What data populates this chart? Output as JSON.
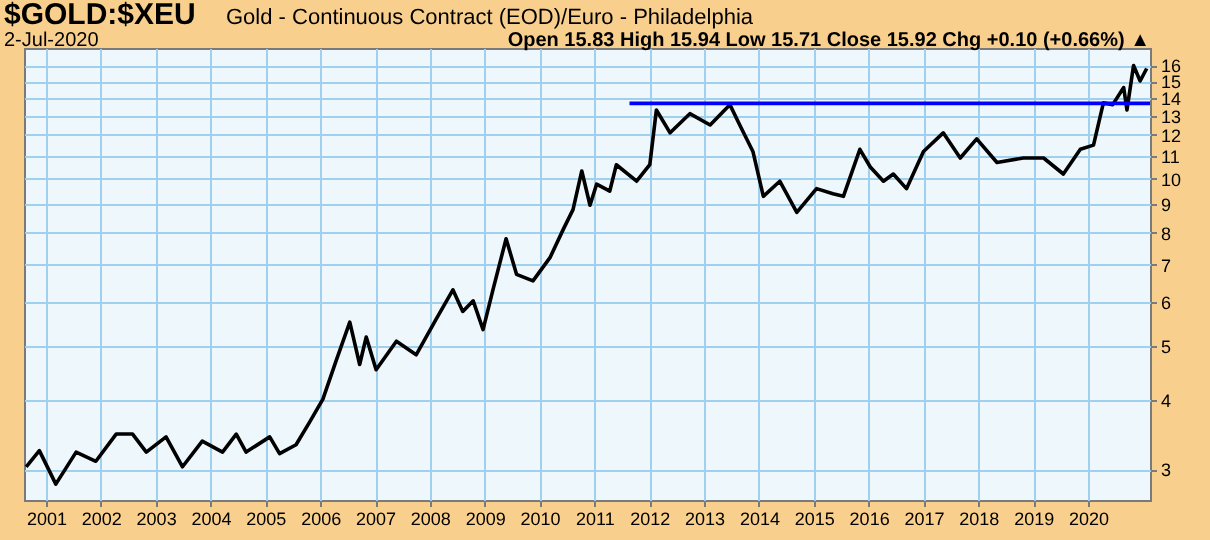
{
  "chart_data": {
    "type": "line",
    "title": "$GOLD:$XEU",
    "subtitle": "Gold - Continuous Contract (EOD)/Euro - Philadelphia",
    "annotations": [
      "2-Jul-2020",
      "Open 15.83 High 15.94 Low 15.71 Close 15.92 Chg +0.10 (+0.66%) ▲"
    ],
    "log": true,
    "grid": true,
    "xlim": [
      2000.6,
      2021.13
    ],
    "xticks": [
      2001,
      2002,
      2003,
      2004,
      2005,
      2006,
      2007,
      2008,
      2009,
      2010,
      2011,
      2012,
      2013,
      2014,
      2015,
      2016,
      2017,
      2018,
      2019,
      2020
    ],
    "ylim": [
      2.64,
      17.2
    ],
    "yticks": [
      3,
      4,
      5,
      6,
      7,
      8,
      9,
      10,
      11,
      12,
      13,
      14,
      15,
      16
    ],
    "series": [
      {
        "color": "#000000",
        "x": [
          2000.64,
          2000.88,
          2001.18,
          2001.55,
          2001.91,
          2002.28,
          2002.58,
          2002.83,
          2003.19,
          2003.49,
          2003.85,
          2004.22,
          2004.47,
          2004.65,
          2005.08,
          2005.26,
          2005.56,
          2005.81,
          2006.05,
          2006.29,
          2006.54,
          2006.72,
          2006.84,
          2007.02,
          2007.39,
          2007.75,
          2008.12,
          2008.42,
          2008.6,
          2008.79,
          2008.97,
          2009.15,
          2009.39,
          2009.58,
          2009.88,
          2010.19,
          2010.43,
          2010.61,
          2010.77,
          2010.92,
          2011.04,
          2011.28,
          2011.4,
          2011.77,
          2012.01,
          2012.13,
          2012.38,
          2012.74,
          2013.11,
          2013.47,
          2013.65,
          2013.89,
          2014.08,
          2014.38,
          2014.69,
          2015.05,
          2015.35,
          2015.54,
          2015.84,
          2016.03,
          2016.27,
          2016.45,
          2016.69,
          2017.0,
          2017.36,
          2017.67,
          2017.97,
          2018.34,
          2018.82,
          2019.19,
          2019.55,
          2019.86,
          2020.1,
          2020.28,
          2020.45,
          2020.65,
          2020.71,
          2020.83,
          2020.95,
          2021.07
        ],
        "values": [
          3.03,
          3.24,
          2.82,
          3.22,
          3.1,
          3.47,
          3.47,
          3.22,
          3.43,
          3.03,
          3.37,
          3.22,
          3.47,
          3.22,
          3.43,
          3.2,
          3.32,
          3.65,
          4.01,
          4.7,
          5.52,
          4.63,
          5.19,
          4.53,
          5.1,
          4.82,
          5.6,
          6.31,
          5.77,
          6.03,
          5.35,
          6.31,
          7.8,
          6.73,
          6.55,
          7.21,
          8.1,
          8.8,
          10.33,
          8.96,
          9.78,
          9.5,
          10.6,
          9.9,
          10.6,
          13.3,
          12.1,
          13.1,
          12.5,
          13.6,
          12.5,
          11.2,
          9.3,
          9.9,
          8.7,
          9.6,
          9.4,
          9.3,
          11.3,
          10.5,
          9.9,
          10.2,
          9.6,
          11.2,
          12.1,
          10.9,
          11.8,
          10.7,
          10.9,
          10.9,
          10.2,
          11.3,
          11.5,
          13.7,
          13.6,
          14.6,
          13.3,
          16.0,
          15.0,
          15.8
        ]
      },
      {
        "type": "line",
        "color": "#0000ff",
        "x": [
          2011.64,
          2021.13
        ],
        "values": [
          13.67,
          13.67
        ]
      }
    ]
  }
}
